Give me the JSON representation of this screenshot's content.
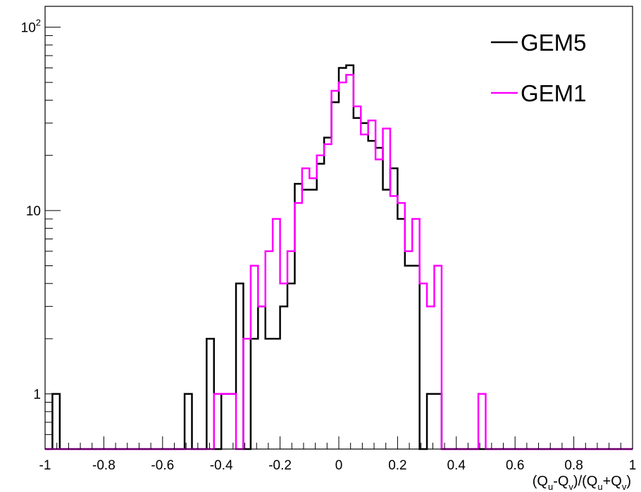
{
  "chart_data": {
    "type": "histogram",
    "xlabel": {
      "parts": [
        "(Q",
        "u",
        "-Q",
        "v",
        ")/(Q",
        "u",
        "+Q",
        "v",
        ")"
      ]
    },
    "ylabel": "",
    "xlim": [
      -1,
      1
    ],
    "ylim": [
      0.5,
      130
    ],
    "yscale": "log",
    "grid": false,
    "legend_position": "top-right",
    "bin_width": 0.025,
    "x_tick_labels": [
      {
        "value": -1,
        "label": "-1"
      },
      {
        "value": -0.8,
        "label": "-0.8"
      },
      {
        "value": -0.6,
        "label": "-0.6"
      },
      {
        "value": -0.4,
        "label": "-0.4"
      },
      {
        "value": -0.2,
        "label": "-0.2"
      },
      {
        "value": 0,
        "label": "0"
      },
      {
        "value": 0.2,
        "label": "0.2"
      },
      {
        "value": 0.4,
        "label": "0.4"
      },
      {
        "value": 0.6,
        "label": "0.6"
      },
      {
        "value": 0.8,
        "label": "0.8"
      },
      {
        "value": 1,
        "label": "1"
      }
    ],
    "y_tick_labels": [
      {
        "value": 1,
        "label": "1",
        "sup": ""
      },
      {
        "value": 10,
        "label": "10",
        "sup": ""
      },
      {
        "value": 100,
        "label": "10",
        "sup": "2"
      }
    ],
    "series": [
      {
        "name": "GEM5",
        "color": "#000000",
        "bins": [
          {
            "x": -0.975,
            "count": 1
          },
          {
            "x": -0.525,
            "count": 1
          },
          {
            "x": -0.45,
            "count": 2
          },
          {
            "x": -0.4,
            "count": 1
          },
          {
            "x": -0.375,
            "count": 1
          },
          {
            "x": -0.35,
            "count": 4
          },
          {
            "x": -0.3,
            "count": 2
          },
          {
            "x": -0.275,
            "count": 3
          },
          {
            "x": -0.25,
            "count": 2
          },
          {
            "x": -0.225,
            "count": 2
          },
          {
            "x": -0.2,
            "count": 3
          },
          {
            "x": -0.175,
            "count": 4
          },
          {
            "x": -0.15,
            "count": 14
          },
          {
            "x": -0.125,
            "count": 13
          },
          {
            "x": -0.1,
            "count": 13
          },
          {
            "x": -0.075,
            "count": 18
          },
          {
            "x": -0.05,
            "count": 25
          },
          {
            "x": -0.025,
            "count": 39
          },
          {
            "x": 0.0,
            "count": 60
          },
          {
            "x": 0.025,
            "count": 62
          },
          {
            "x": 0.05,
            "count": 32
          },
          {
            "x": 0.075,
            "count": 30
          },
          {
            "x": 0.1,
            "count": 24
          },
          {
            "x": 0.125,
            "count": 22
          },
          {
            "x": 0.15,
            "count": 13
          },
          {
            "x": 0.175,
            "count": 17
          },
          {
            "x": 0.2,
            "count": 9
          },
          {
            "x": 0.225,
            "count": 5
          },
          {
            "x": 0.25,
            "count": 5
          },
          {
            "x": 0.3,
            "count": 1
          },
          {
            "x": 0.325,
            "count": 1
          }
        ]
      },
      {
        "name": "GEM1",
        "color": "#ff00ff",
        "bins": [
          {
            "x": -0.425,
            "count": 1
          },
          {
            "x": -0.4,
            "count": 1
          },
          {
            "x": -0.375,
            "count": 1
          },
          {
            "x": -0.325,
            "count": 2
          },
          {
            "x": -0.3,
            "count": 5
          },
          {
            "x": -0.275,
            "count": 3
          },
          {
            "x": -0.25,
            "count": 6
          },
          {
            "x": -0.225,
            "count": 9
          },
          {
            "x": -0.2,
            "count": 4
          },
          {
            "x": -0.175,
            "count": 6
          },
          {
            "x": -0.15,
            "count": 11
          },
          {
            "x": -0.125,
            "count": 17
          },
          {
            "x": -0.1,
            "count": 15
          },
          {
            "x": -0.075,
            "count": 20
          },
          {
            "x": -0.05,
            "count": 23
          },
          {
            "x": -0.025,
            "count": 45
          },
          {
            "x": 0.0,
            "count": 50
          },
          {
            "x": 0.025,
            "count": 55
          },
          {
            "x": 0.05,
            "count": 37
          },
          {
            "x": 0.075,
            "count": 26
          },
          {
            "x": 0.1,
            "count": 31
          },
          {
            "x": 0.125,
            "count": 19
          },
          {
            "x": 0.15,
            "count": 28
          },
          {
            "x": 0.175,
            "count": 12
          },
          {
            "x": 0.2,
            "count": 11
          },
          {
            "x": 0.225,
            "count": 6
          },
          {
            "x": 0.25,
            "count": 9
          },
          {
            "x": 0.275,
            "count": 4
          },
          {
            "x": 0.3,
            "count": 3
          },
          {
            "x": 0.325,
            "count": 5
          },
          {
            "x": 0.475,
            "count": 1
          }
        ]
      }
    ]
  }
}
